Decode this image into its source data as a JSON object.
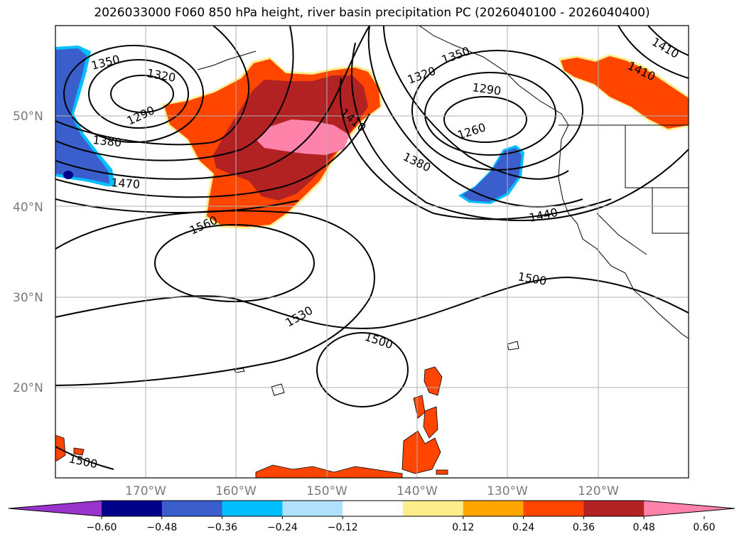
{
  "title": "2026033000 F060 850 hPa height, river basin precipitation PC (2026040100 - 2026040400)",
  "lat_labels": [
    "50°N",
    "40°N",
    "30°N",
    "20°N"
  ],
  "lon_labels": [
    "170°W",
    "160°W",
    "150°W",
    "140°W",
    "130°W",
    "120°W"
  ],
  "contour_labels": [
    "1350",
    "1320",
    "1290",
    "1380",
    "1470",
    "1560",
    "1410",
    "1320",
    "1350",
    "1290",
    "1260",
    "1380",
    "1440",
    "1410",
    "1410",
    "1500",
    "1530",
    "1500",
    "1500"
  ],
  "colorbar": {
    "colors": [
      "#9933cc",
      "#00008b",
      "#3a5fcd",
      "#00bfff",
      "#b0e2ff",
      "#ffffff",
      "#ffec8b",
      "#ffa500",
      "#ff4500",
      "#b22222",
      "#ff82ab"
    ],
    "tick_labels": [
      "−0.60",
      "−0.48",
      "−0.36",
      "−0.24",
      "−0.12",
      "0.12",
      "0.24",
      "0.36",
      "0.48",
      "0.60"
    ]
  }
}
